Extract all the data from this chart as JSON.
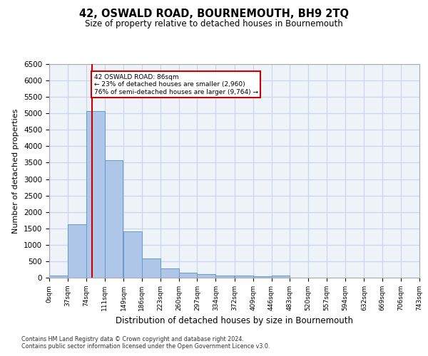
{
  "title": "42, OSWALD ROAD, BOURNEMOUTH, BH9 2TQ",
  "subtitle": "Size of property relative to detached houses in Bournemouth",
  "xlabel": "Distribution of detached houses by size in Bournemouth",
  "ylabel": "Number of detached properties",
  "footnote1": "Contains HM Land Registry data © Crown copyright and database right 2024.",
  "footnote2": "Contains public sector information licensed under the Open Government Licence v3.0.",
  "annotation_line1": "42 OSWALD ROAD: 86sqm",
  "annotation_line2": "← 23% of detached houses are smaller (2,960)",
  "annotation_line3": "76% of semi-detached houses are larger (9,764) →",
  "property_size": 86,
  "bin_width": 37,
  "bin_starts": [
    0,
    37,
    74,
    111,
    149,
    186,
    223,
    260,
    297,
    334,
    372,
    409,
    446,
    483,
    520,
    557,
    594,
    632,
    669,
    706
  ],
  "bar_heights": [
    75,
    1630,
    5080,
    3570,
    1410,
    580,
    290,
    145,
    105,
    75,
    60,
    50,
    75,
    0,
    0,
    0,
    0,
    0,
    0,
    0
  ],
  "bar_color": "#aec6e8",
  "bar_edge_color": "#6699cc",
  "vline_color": "#cc0000",
  "vline_x": 86,
  "annotation_box_color": "#cc0000",
  "ylim": [
    0,
    6500
  ],
  "yticks": [
    0,
    500,
    1000,
    1500,
    2000,
    2500,
    3000,
    3500,
    4000,
    4500,
    5000,
    5500,
    6000,
    6500
  ],
  "xtick_labels": [
    "0sqm",
    "37sqm",
    "74sqm",
    "111sqm",
    "149sqm",
    "186sqm",
    "223sqm",
    "260sqm",
    "297sqm",
    "334sqm",
    "372sqm",
    "409sqm",
    "446sqm",
    "483sqm",
    "520sqm",
    "557sqm",
    "594sqm",
    "632sqm",
    "669sqm",
    "706sqm",
    "743sqm"
  ],
  "grid_color": "#c8d4e8",
  "background_color": "#eef2f9",
  "xlim_max": 743
}
